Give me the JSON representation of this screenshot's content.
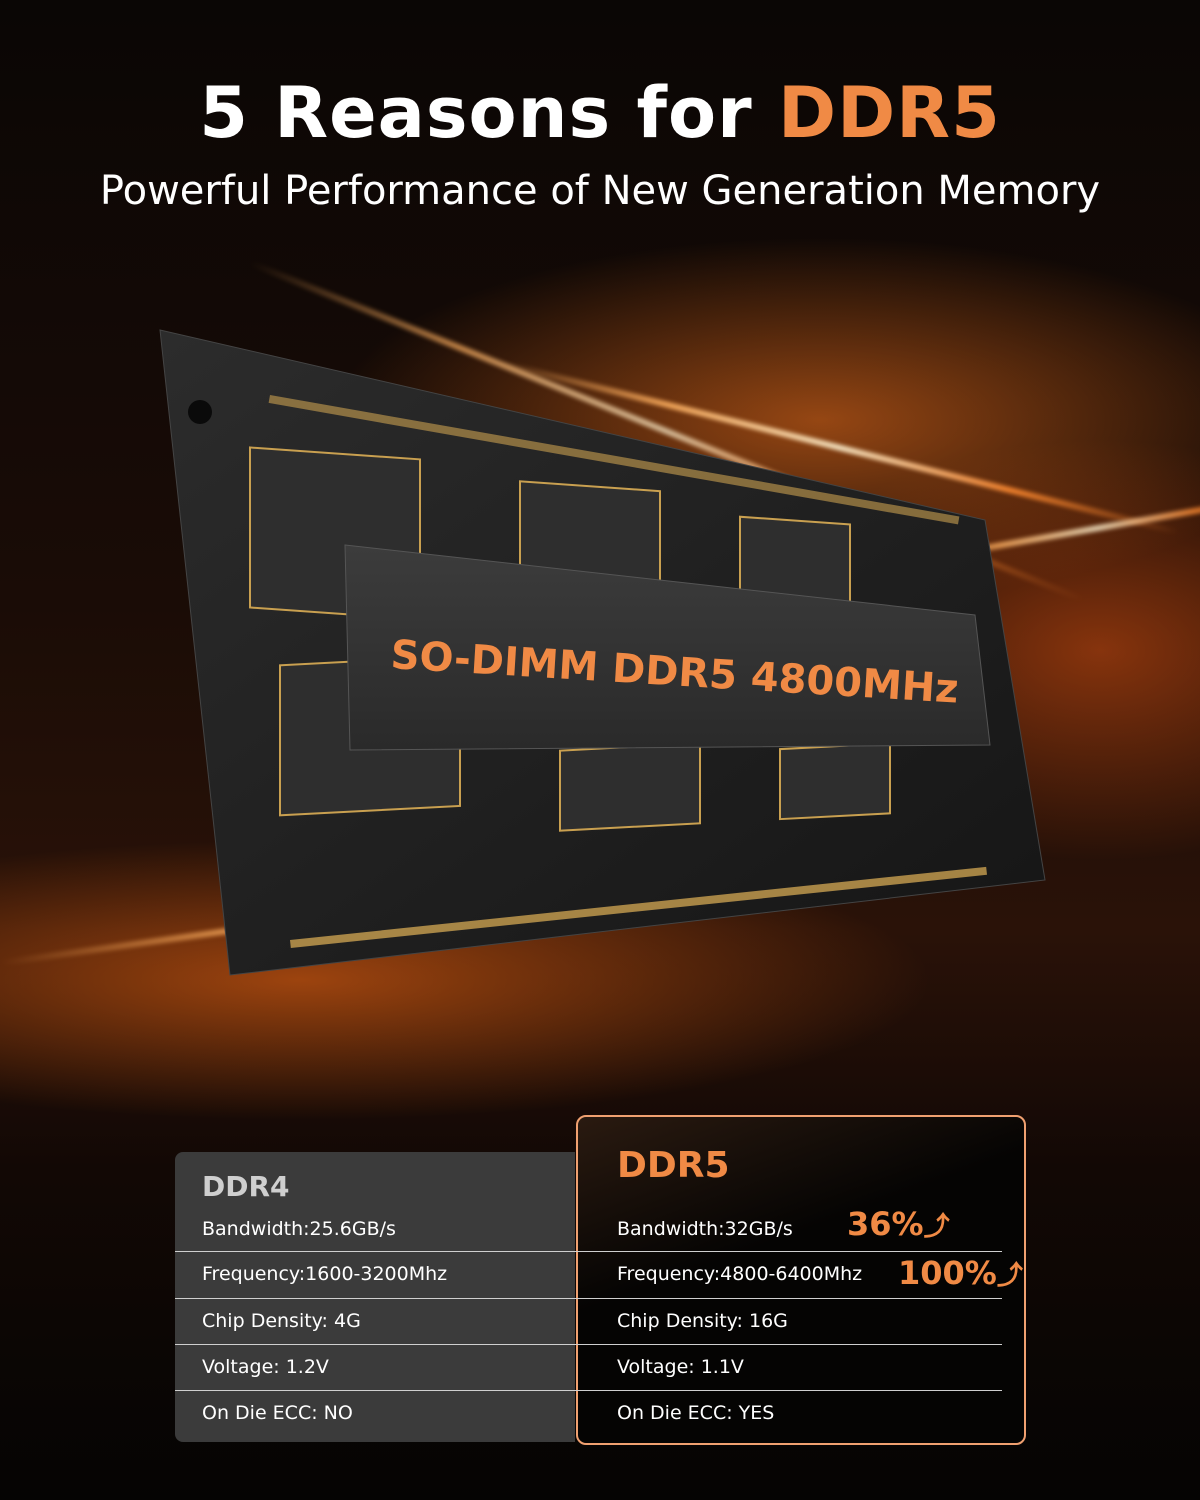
{
  "header": {
    "title_prefix": "5 Reasons for ",
    "title_accent": "DDR5",
    "subtitle": "Powerful Performance of New Generation Memory"
  },
  "module": {
    "label": "SO-DIMM DDR5 4800MHz"
  },
  "colors": {
    "accent": "#f08a45",
    "ddr4_panel": "#3b3b3b",
    "background": "#050403"
  },
  "comparison": {
    "ddr4": {
      "title": "DDR4",
      "rows": [
        "Bandwidth:25.6GB/s",
        "Frequency:1600-3200Mhz",
        "Chip Density: 4G",
        "Voltage: 1.2V",
        "On Die ECC: NO"
      ]
    },
    "ddr5": {
      "title": "DDR5",
      "rows": [
        "Bandwidth:32GB/s",
        "Frequency:4800-6400Mhz",
        "Chip Density: 16G",
        "Voltage: 1.1V",
        "On Die ECC: YES"
      ],
      "gains": [
        {
          "value": "36%",
          "icon": "arrow-up-icon"
        },
        {
          "value": "100%",
          "icon": "arrow-up-icon"
        }
      ]
    }
  }
}
